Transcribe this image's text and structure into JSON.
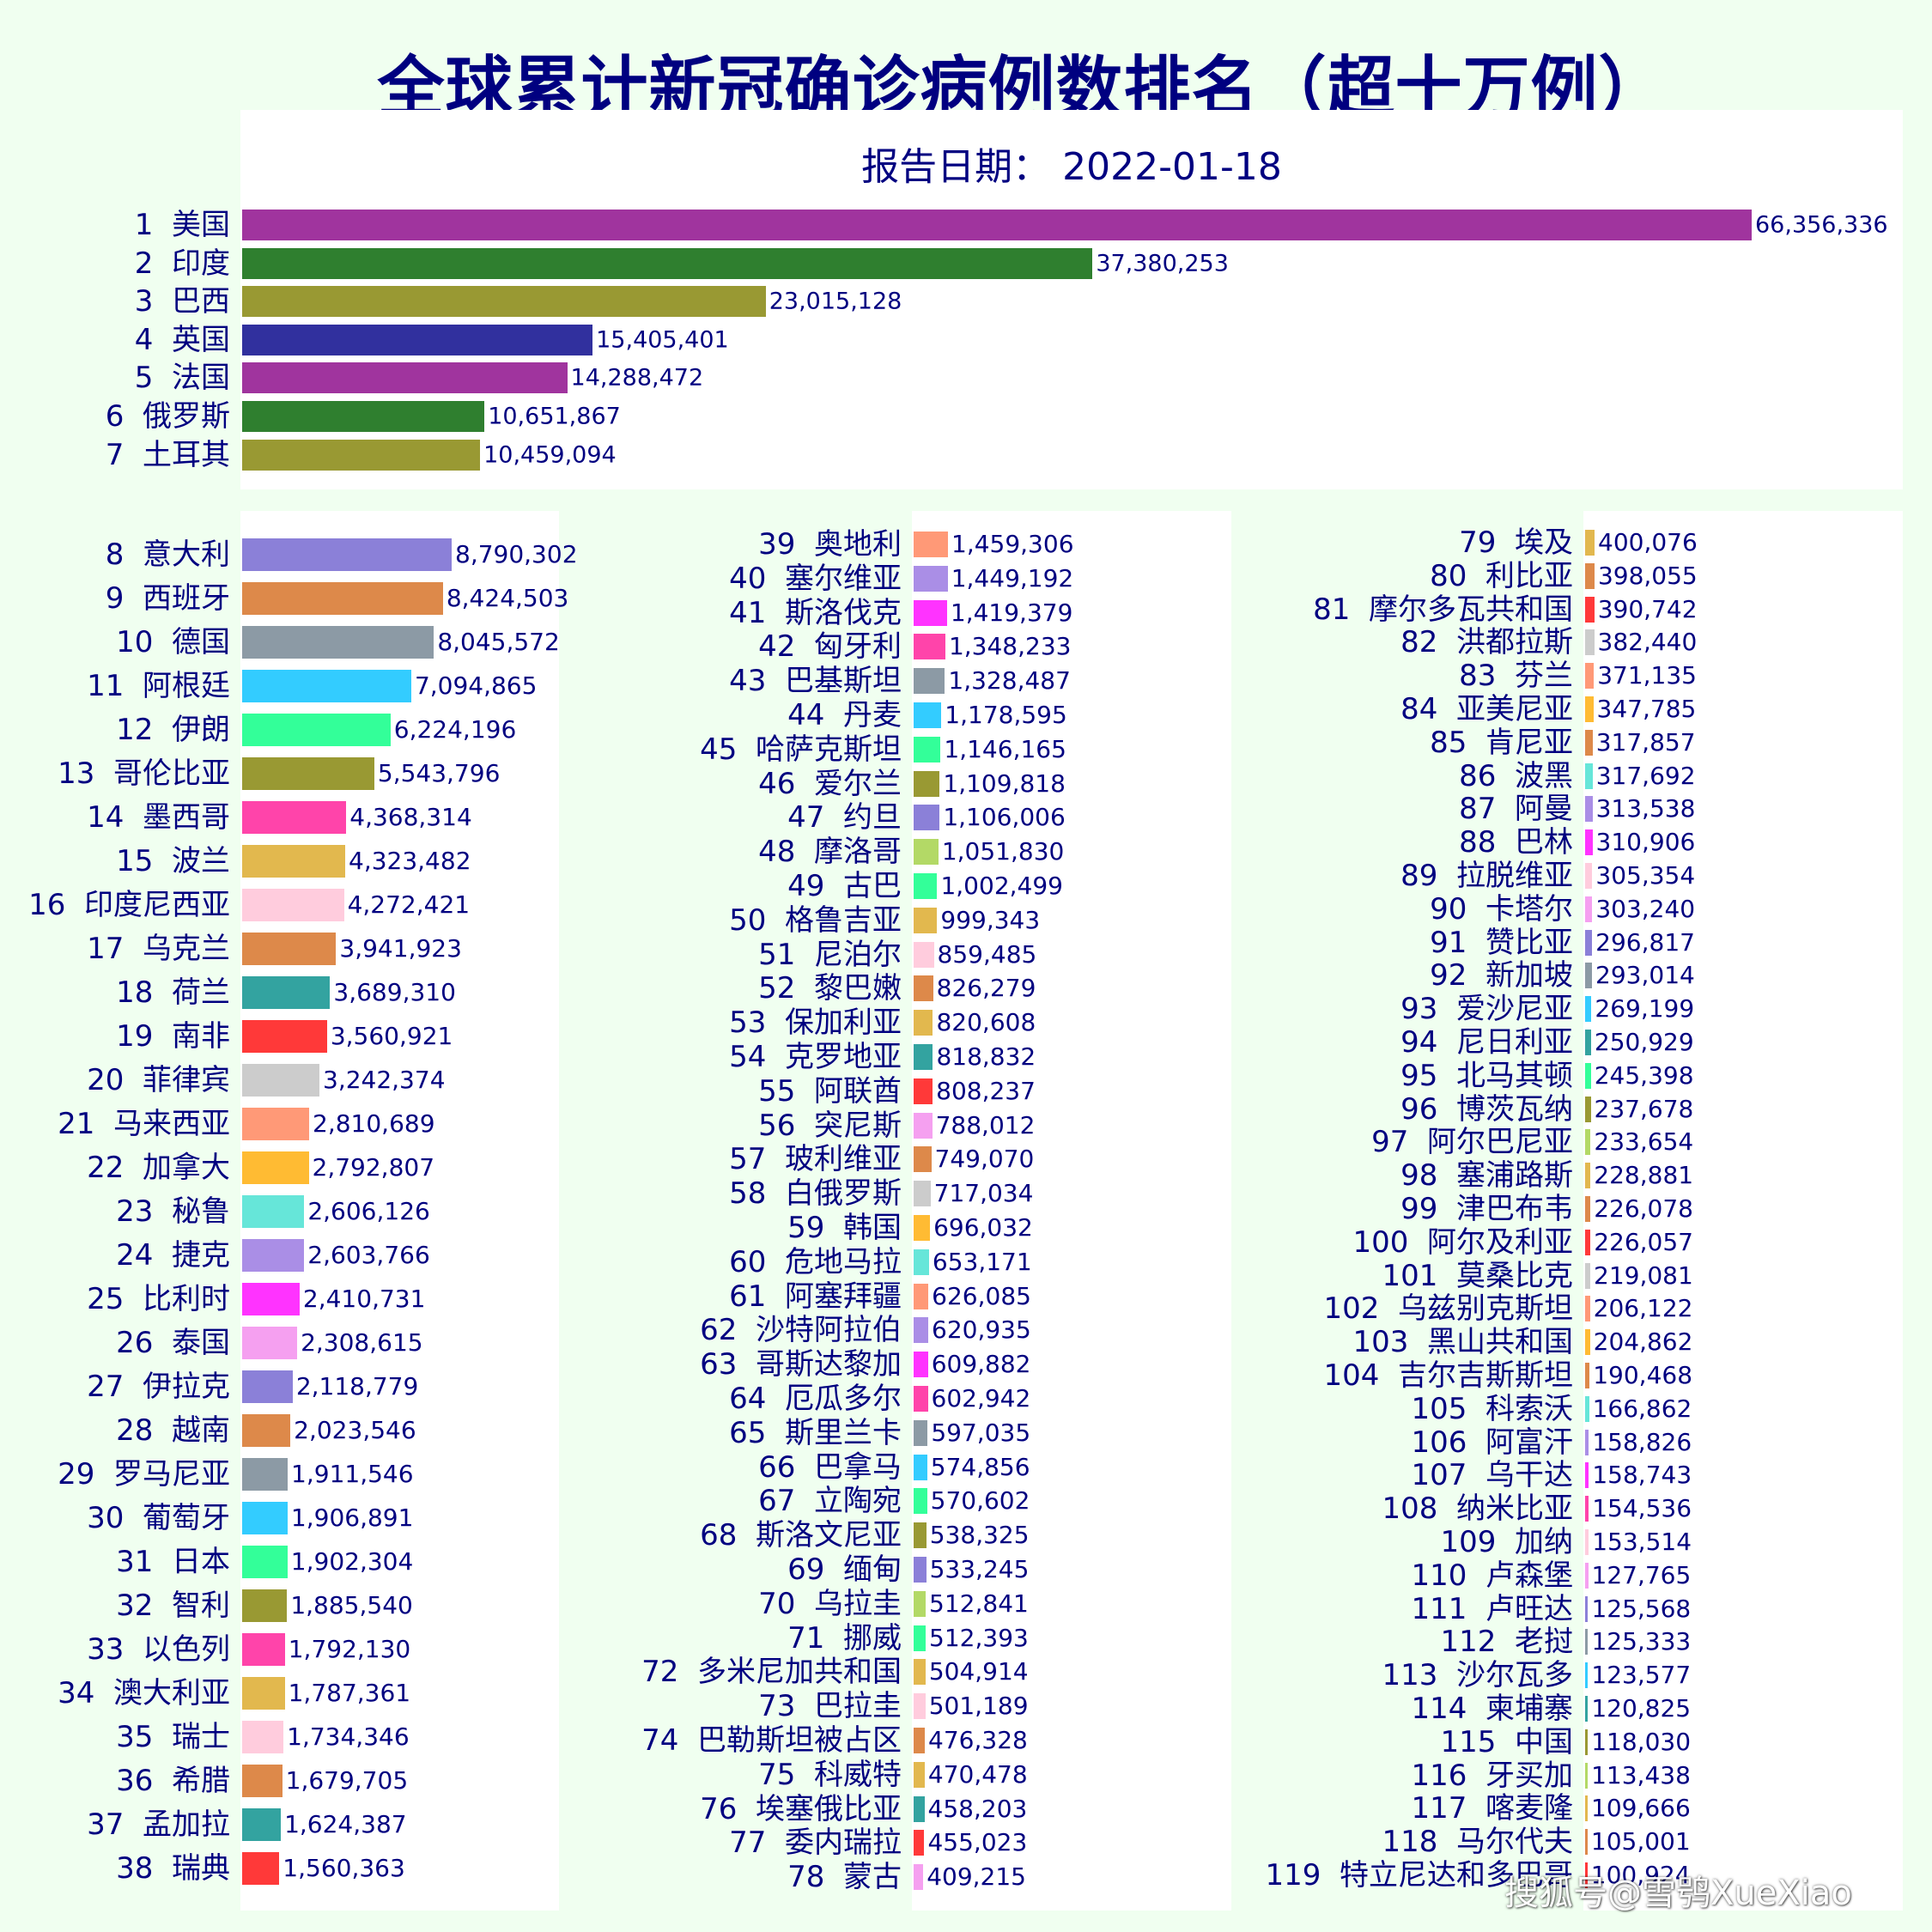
{
  "title": "全球累计新冠确诊病例数排名（超十万例）",
  "report_date_label": "报告日期：",
  "report_date": "2022-01-18",
  "watermark": "搜狐号@雪鸮XueXiao",
  "chart_data": {
    "type": "bar",
    "orientation": "horizontal",
    "title": "全球累计新冠确诊病例数排名（超十万例）",
    "subtitle": "报告日期： 2022-01-18",
    "groups": [
      {
        "panel": "top",
        "scale_max": 66356336,
        "ranks": [
          1,
          7
        ]
      },
      {
        "panel": "column-1",
        "scale_max": 8790302,
        "ranks": [
          8,
          38
        ]
      },
      {
        "panel": "column-2",
        "scale_max": 1459306,
        "ranks": [
          39,
          78
        ]
      },
      {
        "panel": "column-3",
        "scale_max": 400076,
        "ranks": [
          79,
          119
        ]
      }
    ],
    "series": [
      {
        "rank": "1",
        "name": "美国",
        "value": 66356336,
        "label": "66,356,336",
        "color": "#a0349e"
      },
      {
        "rank": "2",
        "name": "印度",
        "value": 37380253,
        "label": "37,380,253",
        "color": "#2f7f2f"
      },
      {
        "rank": "3",
        "name": "巴西",
        "value": 23015128,
        "label": "23,015,128",
        "color": "#999933"
      },
      {
        "rank": "4",
        "name": "英国",
        "value": 15405401,
        "label": "15,405,401",
        "color": "#31309e"
      },
      {
        "rank": "5",
        "name": "法国",
        "value": 14288472,
        "label": "14,288,472",
        "color": "#a0349e"
      },
      {
        "rank": "6",
        "name": "俄罗斯",
        "value": 10651867,
        "label": "10,651,867",
        "color": "#2f7f2f"
      },
      {
        "rank": "7",
        "name": "土耳其",
        "value": 10459094,
        "label": "10,459,094",
        "color": "#999933"
      },
      {
        "rank": "8",
        "name": "意大利",
        "value": 8790302,
        "label": "8,790,302",
        "color": "#8b80d8"
      },
      {
        "rank": "9",
        "name": "西班牙",
        "value": 8424503,
        "label": "8,424,503",
        "color": "#dd894a"
      },
      {
        "rank": "10",
        "name": "德国",
        "value": 8045572,
        "label": "8,045,572",
        "color": "#8c9aa5"
      },
      {
        "rank": "11",
        "name": "阿根廷",
        "value": 7094865,
        "label": "7,094,865",
        "color": "#33ccff"
      },
      {
        "rank": "12",
        "name": "伊朗",
        "value": 6224196,
        "label": "6,224,196",
        "color": "#33ff99"
      },
      {
        "rank": "13",
        "name": "哥伦比亚",
        "value": 5543796,
        "label": "5,543,796",
        "color": "#999933"
      },
      {
        "rank": "14",
        "name": "墨西哥",
        "value": 4368314,
        "label": "4,368,314",
        "color": "#ff44aa"
      },
      {
        "rank": "15",
        "name": "波兰",
        "value": 4323482,
        "label": "4,323,482",
        "color": "#e2b84e"
      },
      {
        "rank": "16",
        "name": "印度尼西亚",
        "value": 4272421,
        "label": "4,272,421",
        "color": "#ffccdd"
      },
      {
        "rank": "17",
        "name": "乌克兰",
        "value": 3941923,
        "label": "3,941,923",
        "color": "#dd894a"
      },
      {
        "rank": "18",
        "name": "荷兰",
        "value": 3689310,
        "label": "3,689,310",
        "color": "#33a3a0"
      },
      {
        "rank": "19",
        "name": "南非",
        "value": 3560921,
        "label": "3,560,921",
        "color": "#ff3939"
      },
      {
        "rank": "20",
        "name": "菲律宾",
        "value": 3242374,
        "label": "3,242,374",
        "color": "#cccccc"
      },
      {
        "rank": "21",
        "name": "马来西亚",
        "value": 2810689,
        "label": "2,810,689",
        "color": "#ff9977"
      },
      {
        "rank": "22",
        "name": "加拿大",
        "value": 2792807,
        "label": "2,792,807",
        "color": "#ffbb33"
      },
      {
        "rank": "23",
        "name": "秘鲁",
        "value": 2606126,
        "label": "2,606,126",
        "color": "#66e6d9"
      },
      {
        "rank": "24",
        "name": "捷克",
        "value": 2603766,
        "label": "2,603,766",
        "color": "#aa8ee6"
      },
      {
        "rank": "25",
        "name": "比利时",
        "value": 2410731,
        "label": "2,410,731",
        "color": "#ff33ff"
      },
      {
        "rank": "26",
        "name": "泰国",
        "value": 2308615,
        "label": "2,308,615",
        "color": "#f5a0f0"
      },
      {
        "rank": "27",
        "name": "伊拉克",
        "value": 2118779,
        "label": "2,118,779",
        "color": "#8b80d8"
      },
      {
        "rank": "28",
        "name": "越南",
        "value": 2023546,
        "label": "2,023,546",
        "color": "#dd894a"
      },
      {
        "rank": "29",
        "name": "罗马尼亚",
        "value": 1911546,
        "label": "1,911,546",
        "color": "#8c9aa5"
      },
      {
        "rank": "30",
        "name": "葡萄牙",
        "value": 1906891,
        "label": "1,906,891",
        "color": "#33ccff"
      },
      {
        "rank": "31",
        "name": "日本",
        "value": 1902304,
        "label": "1,902,304",
        "color": "#33ff99"
      },
      {
        "rank": "32",
        "name": "智利",
        "value": 1885540,
        "label": "1,885,540",
        "color": "#999933"
      },
      {
        "rank": "33",
        "name": "以色列",
        "value": 1792130,
        "label": "1,792,130",
        "color": "#ff44aa"
      },
      {
        "rank": "34",
        "name": "澳大利亚",
        "value": 1787361,
        "label": "1,787,361",
        "color": "#e2b84e"
      },
      {
        "rank": "35",
        "name": "瑞士",
        "value": 1734346,
        "label": "1,734,346",
        "color": "#ffccdd"
      },
      {
        "rank": "36",
        "name": "希腊",
        "value": 1679705,
        "label": "1,679,705",
        "color": "#dd894a"
      },
      {
        "rank": "37",
        "name": "孟加拉",
        "value": 1624387,
        "label": "1,624,387",
        "color": "#33a3a0"
      },
      {
        "rank": "38",
        "name": "瑞典",
        "value": 1560363,
        "label": "1,560,363",
        "color": "#ff3939"
      },
      {
        "rank": "39",
        "name": "奥地利",
        "value": 1459306,
        "label": "1,459,306",
        "color": "#ff9977"
      },
      {
        "rank": "40",
        "name": "塞尔维亚",
        "value": 1449192,
        "label": "1,449,192",
        "color": "#aa8ee6"
      },
      {
        "rank": "41",
        "name": "斯洛伐克",
        "value": 1419379,
        "label": "1,419,379",
        "color": "#ff33ff"
      },
      {
        "rank": "42",
        "name": "匈牙利",
        "value": 1348233,
        "label": "1,348,233",
        "color": "#ff44aa"
      },
      {
        "rank": "43",
        "name": "巴基斯坦",
        "value": 1328487,
        "label": "1,328,487",
        "color": "#8c9aa5"
      },
      {
        "rank": "44",
        "name": "丹麦",
        "value": 1178595,
        "label": "1,178,595",
        "color": "#33ccff"
      },
      {
        "rank": "45",
        "name": "哈萨克斯坦",
        "value": 1146165,
        "label": "1,146,165",
        "color": "#33ff99"
      },
      {
        "rank": "46",
        "name": "爱尔兰",
        "value": 1109818,
        "label": "1,109,818",
        "color": "#999933"
      },
      {
        "rank": "47",
        "name": "约旦",
        "value": 1106006,
        "label": "1,106,006",
        "color": "#8b80d8"
      },
      {
        "rank": "48",
        "name": "摩洛哥",
        "value": 1051830,
        "label": "1,051,830",
        "color": "#b3d966"
      },
      {
        "rank": "49",
        "name": "古巴",
        "value": 1002499,
        "label": "1,002,499",
        "color": "#33ff99"
      },
      {
        "rank": "50",
        "name": "格鲁吉亚",
        "value": 999343,
        "label": "999,343",
        "color": "#e2b84e"
      },
      {
        "rank": "51",
        "name": "尼泊尔",
        "value": 859485,
        "label": "859,485",
        "color": "#ffccdd"
      },
      {
        "rank": "52",
        "name": "黎巴嫩",
        "value": 826279,
        "label": "826,279",
        "color": "#dd894a"
      },
      {
        "rank": "53",
        "name": "保加利亚",
        "value": 820608,
        "label": "820,608",
        "color": "#e2b84e"
      },
      {
        "rank": "54",
        "name": "克罗地亚",
        "value": 818832,
        "label": "818,832",
        "color": "#33a3a0"
      },
      {
        "rank": "55",
        "name": "阿联酋",
        "value": 808237,
        "label": "808,237",
        "color": "#ff3939"
      },
      {
        "rank": "56",
        "name": "突尼斯",
        "value": 788012,
        "label": "788,012",
        "color": "#f5a0f0"
      },
      {
        "rank": "57",
        "name": "玻利维亚",
        "value": 749070,
        "label": "749,070",
        "color": "#dd894a"
      },
      {
        "rank": "58",
        "name": "白俄罗斯",
        "value": 717034,
        "label": "717,034",
        "color": "#cccccc"
      },
      {
        "rank": "59",
        "name": "韩国",
        "value": 696032,
        "label": "696,032",
        "color": "#ffbb33"
      },
      {
        "rank": "60",
        "name": "危地马拉",
        "value": 653171,
        "label": "653,171",
        "color": "#66e6d9"
      },
      {
        "rank": "61",
        "name": "阿塞拜疆",
        "value": 626085,
        "label": "626,085",
        "color": "#ff9977"
      },
      {
        "rank": "62",
        "name": "沙特阿拉伯",
        "value": 620935,
        "label": "620,935",
        "color": "#aa8ee6"
      },
      {
        "rank": "63",
        "name": "哥斯达黎加",
        "value": 609882,
        "label": "609,882",
        "color": "#ff33ff"
      },
      {
        "rank": "64",
        "name": "厄瓜多尔",
        "value": 602942,
        "label": "602,942",
        "color": "#ff44aa"
      },
      {
        "rank": "65",
        "name": "斯里兰卡",
        "value": 597035,
        "label": "597,035",
        "color": "#8c9aa5"
      },
      {
        "rank": "66",
        "name": "巴拿马",
        "value": 574856,
        "label": "574,856",
        "color": "#33ccff"
      },
      {
        "rank": "67",
        "name": "立陶宛",
        "value": 570602,
        "label": "570,602",
        "color": "#33ff99"
      },
      {
        "rank": "68",
        "name": "斯洛文尼亚",
        "value": 538325,
        "label": "538,325",
        "color": "#999933"
      },
      {
        "rank": "69",
        "name": "缅甸",
        "value": 533245,
        "label": "533,245",
        "color": "#8b80d8"
      },
      {
        "rank": "70",
        "name": "乌拉圭",
        "value": 512841,
        "label": "512,841",
        "color": "#b3d966"
      },
      {
        "rank": "71",
        "name": "挪威",
        "value": 512393,
        "label": "512,393",
        "color": "#33ff99"
      },
      {
        "rank": "72",
        "name": "多米尼加共和国",
        "value": 504914,
        "label": "504,914",
        "color": "#e2b84e"
      },
      {
        "rank": "73",
        "name": "巴拉圭",
        "value": 501189,
        "label": "501,189",
        "color": "#ffccdd"
      },
      {
        "rank": "74",
        "name": "巴勒斯坦被占区",
        "value": 476328,
        "label": "476,328",
        "color": "#dd894a"
      },
      {
        "rank": "75",
        "name": "科威特",
        "value": 470478,
        "label": "470,478",
        "color": "#e2b84e"
      },
      {
        "rank": "76",
        "name": "埃塞俄比亚",
        "value": 458203,
        "label": "458,203",
        "color": "#33a3a0"
      },
      {
        "rank": "77",
        "name": "委内瑞拉",
        "value": 455023,
        "label": "455,023",
        "color": "#ff3939"
      },
      {
        "rank": "78",
        "name": "蒙古",
        "value": 409215,
        "label": "409,215",
        "color": "#f5a0f0"
      },
      {
        "rank": "79",
        "name": "埃及",
        "value": 400076,
        "label": "400,076",
        "color": "#e2b84e"
      },
      {
        "rank": "80",
        "name": "利比亚",
        "value": 398055,
        "label": "398,055",
        "color": "#dd894a"
      },
      {
        "rank": "81",
        "name": "摩尔多瓦共和国",
        "value": 390742,
        "label": "390,742",
        "color": "#ff3939"
      },
      {
        "rank": "82",
        "name": "洪都拉斯",
        "value": 382440,
        "label": "382,440",
        "color": "#cccccc"
      },
      {
        "rank": "83",
        "name": "芬兰",
        "value": 371135,
        "label": "371,135",
        "color": "#ff9977"
      },
      {
        "rank": "84",
        "name": "亚美尼亚",
        "value": 347785,
        "label": "347,785",
        "color": "#ffbb33"
      },
      {
        "rank": "85",
        "name": "肯尼亚",
        "value": 317857,
        "label": "317,857",
        "color": "#dd894a"
      },
      {
        "rank": "86",
        "name": "波黑",
        "value": 317692,
        "label": "317,692",
        "color": "#66e6d9"
      },
      {
        "rank": "87",
        "name": "阿曼",
        "value": 313538,
        "label": "313,538",
        "color": "#aa8ee6"
      },
      {
        "rank": "88",
        "name": "巴林",
        "value": 310906,
        "label": "310,906",
        "color": "#ff33ff"
      },
      {
        "rank": "89",
        "name": "拉脱维亚",
        "value": 305354,
        "label": "305,354",
        "color": "#ffccdd"
      },
      {
        "rank": "90",
        "name": "卡塔尔",
        "value": 303240,
        "label": "303,240",
        "color": "#f5a0f0"
      },
      {
        "rank": "91",
        "name": "赞比亚",
        "value": 296817,
        "label": "296,817",
        "color": "#8b80d8"
      },
      {
        "rank": "92",
        "name": "新加坡",
        "value": 293014,
        "label": "293,014",
        "color": "#8c9aa5"
      },
      {
        "rank": "93",
        "name": "爱沙尼亚",
        "value": 269199,
        "label": "269,199",
        "color": "#33ccff"
      },
      {
        "rank": "94",
        "name": "尼日利亚",
        "value": 250929,
        "label": "250,929",
        "color": "#33a3a0"
      },
      {
        "rank": "95",
        "name": "北马其顿",
        "value": 245398,
        "label": "245,398",
        "color": "#33ff99"
      },
      {
        "rank": "96",
        "name": "博茨瓦纳",
        "value": 237678,
        "label": "237,678",
        "color": "#999933"
      },
      {
        "rank": "97",
        "name": "阿尔巴尼亚",
        "value": 233654,
        "label": "233,654",
        "color": "#b3d966"
      },
      {
        "rank": "98",
        "name": "塞浦路斯",
        "value": 228881,
        "label": "228,881",
        "color": "#e2b84e"
      },
      {
        "rank": "99",
        "name": "津巴布韦",
        "value": 226078,
        "label": "226,078",
        "color": "#dd894a"
      },
      {
        "rank": "100",
        "name": "阿尔及利亚",
        "value": 226057,
        "label": "226,057",
        "color": "#ff3939"
      },
      {
        "rank": "101",
        "name": "莫桑比克",
        "value": 219081,
        "label": "219,081",
        "color": "#cccccc"
      },
      {
        "rank": "102",
        "name": "乌兹别克斯坦",
        "value": 206122,
        "label": "206,122",
        "color": "#ff9977"
      },
      {
        "rank": "103",
        "name": "黑山共和国",
        "value": 204862,
        "label": "204,862",
        "color": "#ffbb33"
      },
      {
        "rank": "104",
        "name": "吉尔吉斯斯坦",
        "value": 190468,
        "label": "190,468",
        "color": "#dd894a"
      },
      {
        "rank": "105",
        "name": "科索沃",
        "value": 166862,
        "label": "166,862",
        "color": "#66e6d9"
      },
      {
        "rank": "106",
        "name": "阿富汗",
        "value": 158826,
        "label": "158,826",
        "color": "#aa8ee6"
      },
      {
        "rank": "107",
        "name": "乌干达",
        "value": 158743,
        "label": "158,743",
        "color": "#ff33ff"
      },
      {
        "rank": "108",
        "name": "纳米比亚",
        "value": 154536,
        "label": "154,536",
        "color": "#ff44aa"
      },
      {
        "rank": "109",
        "name": "加纳",
        "value": 153514,
        "label": "153,514",
        "color": "#ffccdd"
      },
      {
        "rank": "110",
        "name": "卢森堡",
        "value": 127765,
        "label": "127,765",
        "color": "#f5a0f0"
      },
      {
        "rank": "111",
        "name": "卢旺达",
        "value": 125568,
        "label": "125,568",
        "color": "#8b80d8"
      },
      {
        "rank": "112",
        "name": "老挝",
        "value": 125333,
        "label": "125,333",
        "color": "#8c9aa5"
      },
      {
        "rank": "113",
        "name": "沙尔瓦多",
        "value": 123577,
        "label": "123,577",
        "color": "#33ccff"
      },
      {
        "rank": "114",
        "name": "柬埔寨",
        "value": 120825,
        "label": "120,825",
        "color": "#33a3a0"
      },
      {
        "rank": "115",
        "name": "中国",
        "value": 118030,
        "label": "118,030",
        "color": "#999933"
      },
      {
        "rank": "116",
        "name": "牙买加",
        "value": 113438,
        "label": "113,438",
        "color": "#b3d966"
      },
      {
        "rank": "117",
        "name": "喀麦隆",
        "value": 109666,
        "label": "109,666",
        "color": "#e2b84e"
      },
      {
        "rank": "118",
        "name": "马尔代夫",
        "value": 105001,
        "label": "105,001",
        "color": "#dd894a"
      },
      {
        "rank": "119",
        "name": "特立尼达和多巴哥",
        "value": 100924,
        "label": "100,924",
        "color": "#ff3939"
      }
    ]
  }
}
